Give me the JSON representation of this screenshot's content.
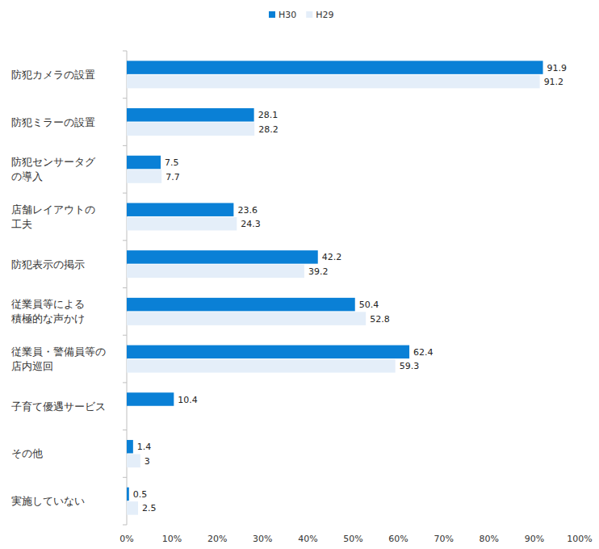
{
  "chart_data": {
    "type": "bar",
    "orientation": "horizontal",
    "categories": [
      "防犯カメラの設置",
      "防犯ミラーの設置",
      "防犯センサータグ\nの導入",
      "店舗レイアウトの\n工夫",
      "防犯表示の掲示",
      "従業員等による\n積極的な声かけ",
      "従業員・警備員等の\n店内巡回",
      "子育て優遇サービス",
      "その他",
      "実施していない"
    ],
    "series": [
      {
        "name": "H30",
        "color": "#0a80d6",
        "values": [
          91.9,
          28.1,
          7.5,
          23.6,
          42.2,
          50.4,
          62.4,
          10.4,
          1.4,
          0.5
        ]
      },
      {
        "name": "H29",
        "color": "#e4eef9",
        "values": [
          91.2,
          28.2,
          7.7,
          24.3,
          39.2,
          52.8,
          59.3,
          null,
          3,
          2.5
        ]
      }
    ],
    "xlim": [
      0,
      100
    ],
    "xticks": [
      {
        "value": 0,
        "label": "0%"
      },
      {
        "value": 10,
        "label": "10%"
      },
      {
        "value": 20,
        "label": "20%"
      },
      {
        "value": 30,
        "label": "30%"
      },
      {
        "value": 40,
        "label": "40%"
      },
      {
        "value": 50,
        "label": "50%"
      },
      {
        "value": 60,
        "label": "60%"
      },
      {
        "value": 70,
        "label": "70%"
      },
      {
        "value": 80,
        "label": "80%"
      },
      {
        "value": 90,
        "label": "90%"
      },
      {
        "value": 100,
        "label": "100%"
      }
    ],
    "grid": false,
    "legend": "top",
    "data_labels": true
  }
}
